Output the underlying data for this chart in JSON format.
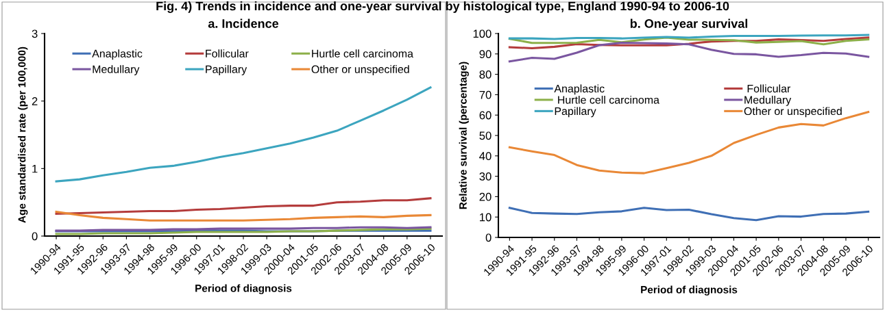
{
  "chart_data": [
    {
      "type": "line",
      "title": "a. Incidence",
      "xlabel": "Period of diagnosis",
      "ylabel": "Age standardised rate (per 100,000)",
      "annotations": [
        "Fig. 4) Trends in incidence and one-year survival by histological type, England 1990-94 to 2006-10"
      ],
      "categories": [
        "1990-94",
        "1991-95",
        "1992-96",
        "1993-97",
        "1994-98",
        "1995-99",
        "1996-00",
        "1997-01",
        "1998-02",
        "1999-03",
        "2000-04",
        "2001-05",
        "2002-06",
        "2003-07",
        "2004-08",
        "2005-09",
        "2006-10"
      ],
      "ylim": [
        0,
        3
      ],
      "yticks": [
        0,
        1,
        2,
        3
      ],
      "grid": false,
      "legend": "top",
      "series": [
        {
          "name": "Anaplastic",
          "color": "#3f6fb5",
          "values": [
            0.07,
            0.07,
            0.07,
            0.07,
            0.07,
            0.07,
            0.08,
            0.08,
            0.08,
            0.07,
            0.07,
            0.07,
            0.08,
            0.08,
            0.08,
            0.08,
            0.08
          ]
        },
        {
          "name": "Follicular",
          "color": "#b43c3c",
          "values": [
            0.33,
            0.34,
            0.35,
            0.36,
            0.37,
            0.37,
            0.39,
            0.4,
            0.42,
            0.44,
            0.45,
            0.45,
            0.5,
            0.51,
            0.53,
            0.53,
            0.56
          ]
        },
        {
          "name": "Hurtle cell carcinoma",
          "color": "#8db04a",
          "values": [
            0.03,
            0.03,
            0.04,
            0.04,
            0.04,
            0.05,
            0.06,
            0.06,
            0.06,
            0.06,
            0.07,
            0.07,
            0.08,
            0.09,
            0.1,
            0.1,
            0.11
          ]
        },
        {
          "name": "Medullary",
          "color": "#7a56a0",
          "values": [
            0.08,
            0.08,
            0.09,
            0.09,
            0.09,
            0.1,
            0.1,
            0.11,
            0.11,
            0.11,
            0.11,
            0.12,
            0.12,
            0.13,
            0.13,
            0.12,
            0.13
          ]
        },
        {
          "name": "Papillary",
          "color": "#3ca5bf",
          "values": [
            0.81,
            0.84,
            0.9,
            0.95,
            1.01,
            1.04,
            1.1,
            1.17,
            1.23,
            1.3,
            1.37,
            1.46,
            1.56,
            1.71,
            1.86,
            2.02,
            2.2
          ]
        },
        {
          "name": "Other or unspecified",
          "color": "#e98836",
          "values": [
            0.36,
            0.31,
            0.27,
            0.25,
            0.23,
            0.23,
            0.23,
            0.23,
            0.23,
            0.24,
            0.25,
            0.27,
            0.28,
            0.29,
            0.28,
            0.3,
            0.31
          ]
        }
      ]
    },
    {
      "type": "line",
      "title": "b. One-year survival",
      "xlabel": "Period of diagnosis",
      "ylabel": "Relative survival (percentage)",
      "categories": [
        "1990-94",
        "1991-95",
        "1992-96",
        "1993-97",
        "1994-98",
        "1995-99",
        "1996-00",
        "1997-01",
        "1998-02",
        "1999-03",
        "2000-04",
        "2001-05",
        "2002-06",
        "2003-07",
        "2004-08",
        "2005-09",
        "2006-10"
      ],
      "ylim": [
        0,
        100
      ],
      "yticks": [
        0,
        10,
        20,
        30,
        40,
        50,
        60,
        70,
        80,
        90,
        100
      ],
      "grid": false,
      "legend": "center",
      "series": [
        {
          "name": "Anaplastic",
          "color": "#3f6fb5",
          "values": [
            14.5,
            12,
            11.7,
            11.5,
            12.3,
            12.8,
            14.5,
            13.4,
            13.6,
            11.4,
            9.5,
            8.5,
            10.4,
            10.2,
            11.5,
            11.7,
            12.6
          ]
        },
        {
          "name": " Follicular",
          "color": "#b43c3c",
          "values": [
            93.3,
            92.8,
            93.5,
            94.8,
            94.4,
            94.2,
            94.2,
            94.2,
            95,
            96.1,
            96.4,
            96.4,
            97.1,
            96.8,
            96.4,
            97.3,
            98
          ]
        },
        {
          "name": " Hurtle cell carcinoma",
          "color": "#8db04a",
          "values": [
            97.4,
            95.4,
            95.4,
            95.5,
            96.9,
            95.7,
            97.1,
            98,
            97,
            96.9,
            96.7,
            95.6,
            95.9,
            96.3,
            94.7,
            96.4,
            97.1
          ]
        },
        {
          "name": "Medullary",
          "color": "#7a56a0",
          "values": [
            86.3,
            88.1,
            87.6,
            90.6,
            94.3,
            95.5,
            95.3,
            95.1,
            94.7,
            92,
            90,
            89.8,
            88.6,
            89.4,
            90.5,
            90.2,
            88.6
          ]
        },
        {
          "name": "Papillary",
          "color": "#3ca5bf",
          "values": [
            97.6,
            97.6,
            97.3,
            97.8,
            97.8,
            97.6,
            98,
            98.3,
            98,
            98.5,
            98.8,
            98.8,
            98.8,
            99,
            99.1,
            99.1,
            99.3
          ]
        },
        {
          "name": "Other or unspecified",
          "color": "#e98836",
          "values": [
            44.2,
            42.2,
            40.4,
            35.5,
            32.8,
            31.8,
            31.5,
            34,
            36.6,
            40,
            46.3,
            50.3,
            53.9,
            55.6,
            54.9,
            58.5,
            61.5
          ]
        }
      ]
    }
  ]
}
